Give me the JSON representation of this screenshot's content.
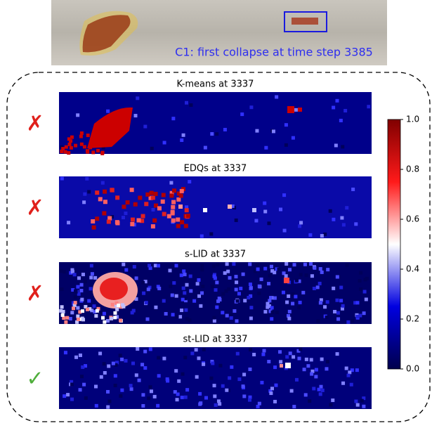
{
  "header": {
    "caption": "C1: first collapse at time step 3385"
  },
  "panels": [
    {
      "title": "K-means at 3337",
      "mark": "✗"
    },
    {
      "title": "EDQs at 3337",
      "mark": "✗"
    },
    {
      "title": "s-LID at 3337",
      "mark": "✗"
    },
    {
      "title": "st-LID at 3337",
      "mark": "✓"
    }
  ],
  "colorbar": {
    "lim": [
      0,
      1
    ],
    "ticks": [
      {
        "value": 0,
        "label": "0.0"
      },
      {
        "value": 0.2,
        "label": "0.2"
      },
      {
        "value": 0.4,
        "label": "0.4"
      },
      {
        "value": 0.6,
        "label": "0.6"
      },
      {
        "value": 0.8,
        "label": "0.8"
      },
      {
        "value": 1,
        "label": "1.0"
      }
    ]
  }
}
